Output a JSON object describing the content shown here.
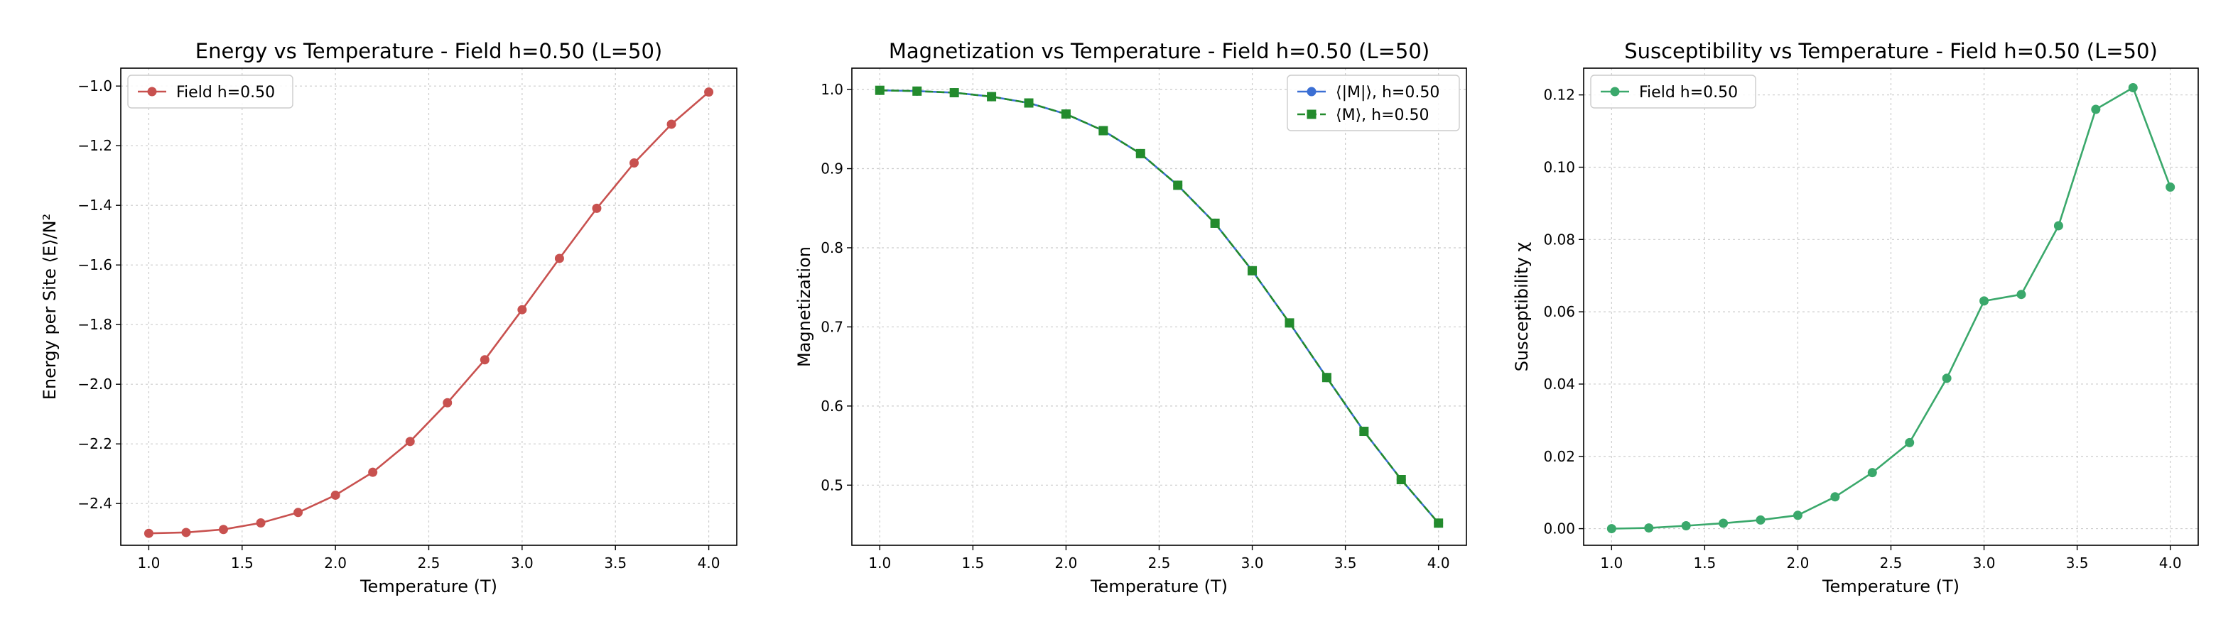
{
  "chart_data": [
    {
      "type": "line",
      "title": "Energy vs Temperature - Field h=0.50 (L=50)",
      "xlabel": "Temperature (T)",
      "ylabel": "Energy per Site ⟨E⟩/N²",
      "xlim": [
        0.85,
        4.15
      ],
      "ylim": [
        -2.54,
        -0.94
      ],
      "xticks": [
        1.0,
        1.5,
        2.0,
        2.5,
        3.0,
        3.5,
        4.0
      ],
      "yticks": [
        -2.4,
        -2.2,
        -2.0,
        -1.8,
        -1.6,
        -1.4,
        -1.2,
        -1.0
      ],
      "grid": true,
      "legend_position": "top-left",
      "series": [
        {
          "name": "Field h=0.50",
          "color": "#c8514f",
          "marker": "circle",
          "dash": "solid",
          "x": [
            1.0,
            1.2,
            1.4,
            1.6,
            1.8,
            2.0,
            2.2,
            2.4,
            2.6,
            2.8,
            3.0,
            3.2,
            3.4,
            3.6,
            3.8,
            4.0
          ],
          "y": [
            -2.5,
            -2.497,
            -2.487,
            -2.465,
            -2.43,
            -2.372,
            -2.295,
            -2.192,
            -2.062,
            -1.918,
            -1.75,
            -1.578,
            -1.41,
            -1.258,
            -1.128,
            -1.02
          ]
        }
      ]
    },
    {
      "type": "line",
      "title": "Magnetization vs Temperature - Field h=0.50 (L=50)",
      "xlabel": "Temperature (T)",
      "ylabel": "Magnetization",
      "xlim": [
        0.85,
        4.15
      ],
      "ylim": [
        0.424,
        1.027
      ],
      "xticks": [
        1.0,
        1.5,
        2.0,
        2.5,
        3.0,
        3.5,
        4.0
      ],
      "yticks": [
        0.5,
        0.6,
        0.7,
        0.8,
        0.9,
        1.0
      ],
      "grid": true,
      "legend_position": "top-right",
      "series": [
        {
          "name": "⟨|M|⟩, h=0.50",
          "color": "#3b6fd4",
          "marker": "circle",
          "dash": "solid",
          "x": [
            1.0,
            1.2,
            1.4,
            1.6,
            1.8,
            2.0,
            2.2,
            2.4,
            2.6,
            2.8,
            3.0,
            3.2,
            3.4,
            3.6,
            3.8,
            4.0
          ],
          "y": [
            0.999,
            0.998,
            0.996,
            0.991,
            0.983,
            0.969,
            0.948,
            0.919,
            0.879,
            0.831,
            0.771,
            0.705,
            0.636,
            0.568,
            0.507,
            0.452
          ]
        },
        {
          "name": "⟨M⟩, h=0.50",
          "color": "#238b2d",
          "marker": "square",
          "dash": "dashed",
          "x": [
            1.0,
            1.2,
            1.4,
            1.6,
            1.8,
            2.0,
            2.2,
            2.4,
            2.6,
            2.8,
            3.0,
            3.2,
            3.4,
            3.6,
            3.8,
            4.0
          ],
          "y": [
            0.999,
            0.998,
            0.996,
            0.991,
            0.983,
            0.969,
            0.948,
            0.919,
            0.879,
            0.831,
            0.771,
            0.705,
            0.636,
            0.568,
            0.507,
            0.452
          ]
        }
      ]
    },
    {
      "type": "line",
      "title": "Susceptibility vs Temperature - Field h=0.50 (L=50)",
      "xlabel": "Temperature (T)",
      "ylabel": "Susceptibility χ",
      "xlim": [
        0.85,
        4.15
      ],
      "ylim": [
        -0.0046,
        0.1274
      ],
      "xticks": [
        1.0,
        1.5,
        2.0,
        2.5,
        3.0,
        3.5,
        4.0
      ],
      "yticks": [
        0.0,
        0.02,
        0.04,
        0.06,
        0.08,
        0.1,
        0.12
      ],
      "grid": true,
      "legend_position": "top-left",
      "series": [
        {
          "name": "Field h=0.50",
          "color": "#3aa86b",
          "marker": "circle",
          "dash": "solid",
          "x": [
            1.0,
            1.2,
            1.4,
            1.6,
            1.8,
            2.0,
            2.2,
            2.4,
            2.6,
            2.8,
            3.0,
            3.2,
            3.4,
            3.6,
            3.8,
            4.0
          ],
          "y": [
            0.0,
            0.0002,
            0.0008,
            0.0015,
            0.0024,
            0.0037,
            0.0088,
            0.0155,
            0.0238,
            0.0416,
            0.063,
            0.0648,
            0.0838,
            0.116,
            0.122,
            0.0945
          ]
        }
      ]
    }
  ]
}
